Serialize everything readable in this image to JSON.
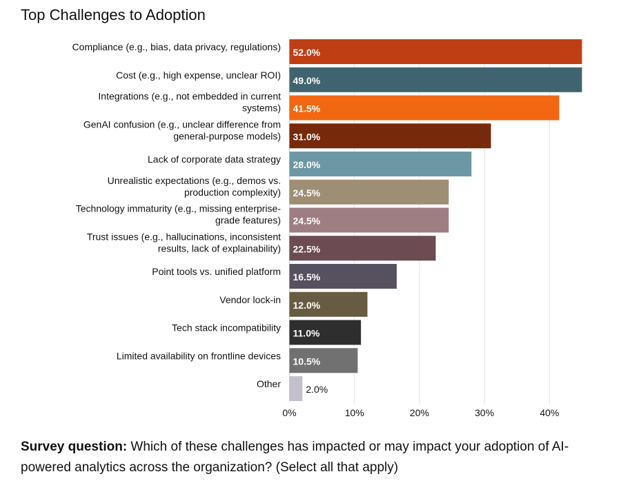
{
  "chart_data": {
    "type": "bar",
    "orientation": "horizontal",
    "title": "Top Challenges to Adoption",
    "categories": [
      [
        "Compliance (e.g., bias, data privacy, regulations)"
      ],
      [
        "Cost (e.g., high expense, unclear ROI)"
      ],
      [
        "Integrations (e.g., not embedded in current",
        "systems)"
      ],
      [
        "GenAI confusion (e.g., unclear difference from",
        "general-purpose models)"
      ],
      [
        "Lack of corporate data strategy"
      ],
      [
        "Unrealistic expectations (e.g., demos vs.",
        "production complexity)"
      ],
      [
        "Technology immaturity (e.g., missing enterprise-",
        "grade features)"
      ],
      [
        "Trust issues (e.g., hallucinations, inconsistent",
        "results, lack of explainability)"
      ],
      [
        "Point tools vs. unified platform"
      ],
      [
        "Vendor lock-in"
      ],
      [
        "Tech stack incompatibility"
      ],
      [
        "Limited availability on frontline devices"
      ],
      [
        "Other"
      ]
    ],
    "values": [
      52.0,
      49.0,
      41.5,
      31.0,
      28.0,
      24.5,
      24.5,
      22.5,
      16.5,
      12.0,
      11.0,
      10.5,
      2.0
    ],
    "data_labels": [
      "52.0%",
      "49.0%",
      "41.5%",
      "31.0%",
      "28.0%",
      "24.5%",
      "24.5%",
      "22.5%",
      "16.5%",
      "12.0%",
      "11.0%",
      "10.5%",
      "2.0%"
    ],
    "colors": [
      "#BF3E14",
      "#40646F",
      "#F26711",
      "#76290B",
      "#6C97A4",
      "#9E8E73",
      "#9E7E83",
      "#6C4B52",
      "#57505F",
      "#675B42",
      "#2E2E2E",
      "#717171",
      "#C4BFCC"
    ],
    "xlim": [
      0,
      45
    ],
    "xticks": [
      0,
      10,
      20,
      30,
      40
    ],
    "xtick_labels": [
      "0%",
      "10%",
      "20%",
      "30%",
      "40%"
    ],
    "grid": "vertical",
    "xlabel": "",
    "ylabel": ""
  },
  "caption": {
    "bold": "Survey question:",
    "text": " Which of these challenges has impacted or may impact your adoption of AI-powered analytics across the organization? (Select all that apply)"
  }
}
